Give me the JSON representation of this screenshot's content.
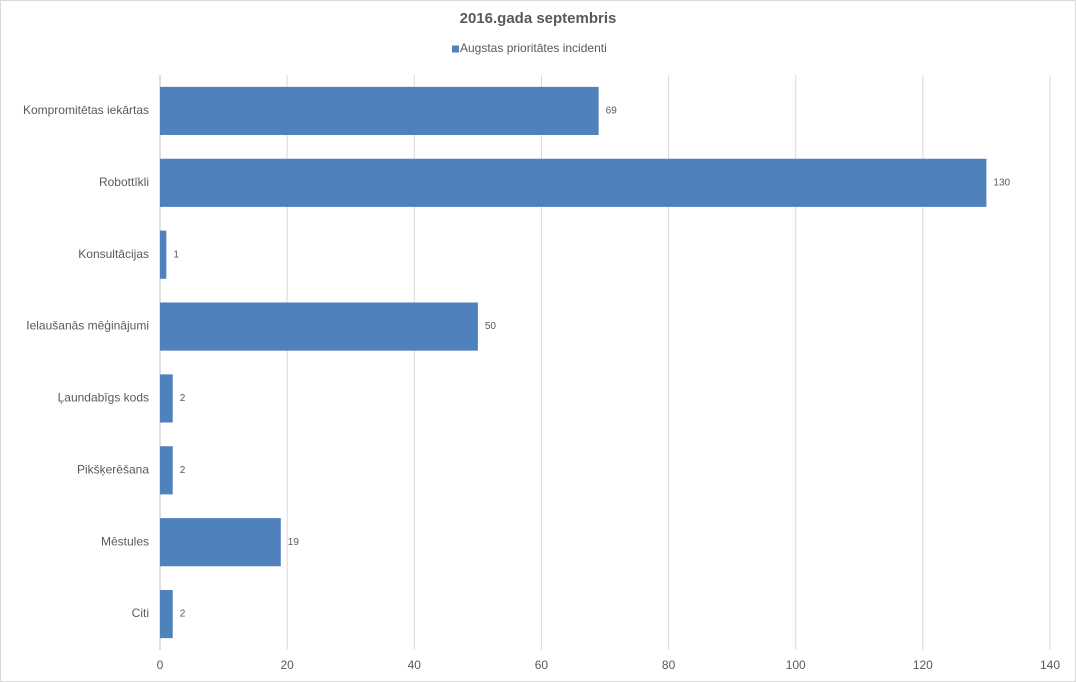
{
  "chart_data": {
    "type": "bar",
    "orientation": "horizontal",
    "title": "2016.gada septembris",
    "categories": [
      "Kompromitētas iekārtas",
      "Robottīkli",
      "Konsultācijas",
      "Ielaušanās mēģinājumi",
      "Ļaundabīgs kods",
      "Pikšķerēšana",
      "Mēstules",
      "Citi"
    ],
    "series": [
      {
        "name": "Augstas prioritātes incidenti",
        "color": "#4f81bd",
        "values": [
          69,
          130,
          1,
          50,
          2,
          2,
          19,
          2
        ]
      }
    ],
    "xlim": [
      0,
      140
    ],
    "xticks": [
      0,
      20,
      40,
      60,
      80,
      100,
      120,
      140
    ],
    "grid": true,
    "legend": "top",
    "data_labels": true
  }
}
